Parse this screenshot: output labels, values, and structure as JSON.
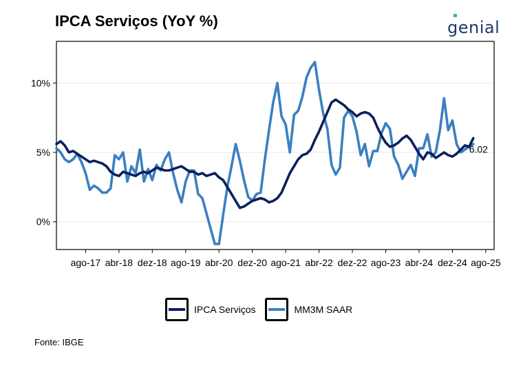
{
  "page_title": "IPCA Serviços (YoY %)",
  "logo_text": "genial",
  "source": "Fonte: IBGE",
  "chart_data": {
    "type": "line",
    "title": "IPCA Serviços (YoY %)",
    "xlabel": "",
    "ylabel": "",
    "ylim": [
      -2,
      13
    ],
    "xlim": [
      2017.0,
      2025.75
    ],
    "yticks": [
      0,
      5,
      10
    ],
    "ytick_labels": [
      "0%",
      "5%",
      "10%"
    ],
    "xticks": [
      2017.5833,
      2018.25,
      2018.9167,
      2019.5833,
      2020.25,
      2020.9167,
      2021.5833,
      2022.25,
      2022.9167,
      2023.5833,
      2024.25,
      2024.9167,
      2025.5833
    ],
    "xtick_labels": [
      "ago-17",
      "abr-18",
      "dez-18",
      "ago-19",
      "abr-20",
      "dez-20",
      "ago-21",
      "abr-22",
      "dez-22",
      "ago-23",
      "abr-24",
      "dez-24",
      "ago-25"
    ],
    "grid": true,
    "legend": "bottom",
    "end_label": "6.02",
    "colors": {
      "ipca": "#0b1f5c",
      "mm3m": "#3a7fc1"
    },
    "series": [
      {
        "name": "IPCA Serviços",
        "x": [
          2017.0,
          2017.0833,
          2017.1667,
          2017.25,
          2017.3333,
          2017.4167,
          2017.5,
          2017.5833,
          2017.6667,
          2017.75,
          2017.8333,
          2017.9167,
          2018.0,
          2018.0833,
          2018.1667,
          2018.25,
          2018.3333,
          2018.4167,
          2018.5,
          2018.5833,
          2018.6667,
          2018.75,
          2018.8333,
          2018.9167,
          2019.0,
          2019.0833,
          2019.1667,
          2019.25,
          2019.3333,
          2019.4167,
          2019.5,
          2019.5833,
          2019.6667,
          2019.75,
          2019.8333,
          2019.9167,
          2020.0,
          2020.0833,
          2020.1667,
          2020.25,
          2020.3333,
          2020.4167,
          2020.5,
          2020.5833,
          2020.6667,
          2020.75,
          2020.8333,
          2020.9167,
          2021.0,
          2021.0833,
          2021.1667,
          2021.25,
          2021.3333,
          2021.4167,
          2021.5,
          2021.5833,
          2021.6667,
          2021.75,
          2021.8333,
          2021.9167,
          2022.0,
          2022.0833,
          2022.1667,
          2022.25,
          2022.3333,
          2022.4167,
          2022.5,
          2022.5833,
          2022.6667,
          2022.75,
          2022.8333,
          2022.9167,
          2023.0,
          2023.0833,
          2023.1667,
          2023.25,
          2023.3333,
          2023.4167,
          2023.5,
          2023.5833,
          2023.6667,
          2023.75,
          2023.8333,
          2023.9167,
          2024.0,
          2024.0833,
          2024.1667,
          2024.25,
          2024.3333,
          2024.4167,
          2024.5,
          2024.5833,
          2024.6667,
          2024.75,
          2024.8333,
          2024.9167,
          2025.0,
          2025.0833,
          2025.1667,
          2025.25,
          2025.3333
        ],
        "values": [
          5.6,
          5.8,
          5.5,
          5.0,
          5.1,
          4.9,
          4.7,
          4.5,
          4.3,
          4.4,
          4.3,
          4.2,
          4.0,
          3.6,
          3.4,
          3.3,
          3.6,
          3.5,
          3.4,
          3.3,
          3.5,
          3.6,
          3.5,
          3.7,
          3.9,
          3.8,
          3.7,
          3.7,
          3.8,
          3.9,
          4.0,
          3.8,
          3.6,
          3.6,
          3.4,
          3.5,
          3.3,
          3.4,
          3.5,
          3.2,
          3.0,
          2.5,
          2.0,
          1.5,
          1.0,
          1.1,
          1.3,
          1.5,
          1.6,
          1.7,
          1.6,
          1.4,
          1.5,
          1.7,
          2.1,
          2.8,
          3.5,
          4.0,
          4.5,
          4.8,
          4.9,
          5.2,
          5.9,
          6.5,
          7.2,
          7.9,
          8.6,
          8.8,
          8.6,
          8.4,
          8.1,
          7.9,
          7.6,
          7.8,
          7.9,
          7.8,
          7.5,
          6.8,
          6.2,
          5.7,
          5.4,
          5.5,
          5.7,
          6.0,
          6.2,
          5.9,
          5.4,
          4.9,
          4.5,
          5.0,
          4.9,
          4.6,
          4.8,
          5.0,
          4.8,
          4.7,
          4.9,
          5.2,
          5.5,
          5.4,
          6.02
        ],
        "color": "#0b1f5c"
      },
      {
        "name": "MM3M SAAR",
        "x": [
          2017.0,
          2017.0833,
          2017.1667,
          2017.25,
          2017.3333,
          2017.4167,
          2017.5,
          2017.5833,
          2017.6667,
          2017.75,
          2017.8333,
          2017.9167,
          2018.0,
          2018.0833,
          2018.1667,
          2018.25,
          2018.3333,
          2018.4167,
          2018.5,
          2018.5833,
          2018.6667,
          2018.75,
          2018.8333,
          2018.9167,
          2019.0,
          2019.0833,
          2019.1667,
          2019.25,
          2019.3333,
          2019.4167,
          2019.5,
          2019.5833,
          2019.6667,
          2019.75,
          2019.8333,
          2019.9167,
          2020.0,
          2020.0833,
          2020.1667,
          2020.25,
          2020.3333,
          2020.4167,
          2020.5,
          2020.5833,
          2020.6667,
          2020.75,
          2020.8333,
          2020.9167,
          2021.0,
          2021.0833,
          2021.1667,
          2021.25,
          2021.3333,
          2021.4167,
          2021.5,
          2021.5833,
          2021.6667,
          2021.75,
          2021.8333,
          2021.9167,
          2022.0,
          2022.0833,
          2022.1667,
          2022.25,
          2022.3333,
          2022.4167,
          2022.5,
          2022.5833,
          2022.6667,
          2022.75,
          2022.8333,
          2022.9167,
          2023.0,
          2023.0833,
          2023.1667,
          2023.25,
          2023.3333,
          2023.4167,
          2023.5,
          2023.5833,
          2023.6667,
          2023.75,
          2023.8333,
          2023.9167,
          2024.0,
          2024.0833,
          2024.1667,
          2024.25,
          2024.3333,
          2024.4167,
          2024.5,
          2024.5833,
          2024.6667,
          2024.75,
          2024.8333,
          2024.9167,
          2025.0,
          2025.0833,
          2025.1667,
          2025.25,
          2025.3333
        ],
        "values": [
          5.3,
          5.0,
          4.5,
          4.3,
          4.5,
          4.9,
          4.3,
          3.5,
          2.3,
          2.6,
          2.4,
          2.1,
          2.1,
          2.4,
          4.8,
          4.5,
          5.0,
          2.9,
          4.0,
          3.5,
          5.2,
          2.9,
          3.8,
          3.0,
          4.1,
          3.7,
          4.5,
          5.0,
          3.5,
          2.3,
          1.4,
          2.9,
          3.7,
          3.7,
          2.0,
          1.7,
          0.6,
          -0.5,
          -1.6,
          -1.6,
          0.5,
          2.5,
          4.0,
          5.6,
          4.4,
          3.0,
          1.8,
          1.5,
          2.0,
          2.1,
          4.5,
          6.6,
          8.6,
          10.0,
          7.6,
          7.0,
          5.0,
          7.7,
          8.0,
          9.0,
          10.4,
          11.1,
          11.5,
          9.5,
          7.8,
          6.7,
          4.1,
          3.4,
          3.9,
          7.5,
          8.0,
          7.6,
          6.5,
          4.8,
          5.6,
          4.0,
          5.1,
          5.1,
          6.4,
          7.1,
          6.7,
          4.7,
          4.1,
          3.1,
          3.6,
          4.1,
          3.3,
          5.3,
          5.3,
          6.3,
          4.7,
          5.0,
          6.6,
          8.9,
          6.6,
          7.3,
          5.6,
          5.0,
          5.2,
          5.4,
          5.6
        ],
        "color": "#3a7fc1"
      }
    ]
  }
}
